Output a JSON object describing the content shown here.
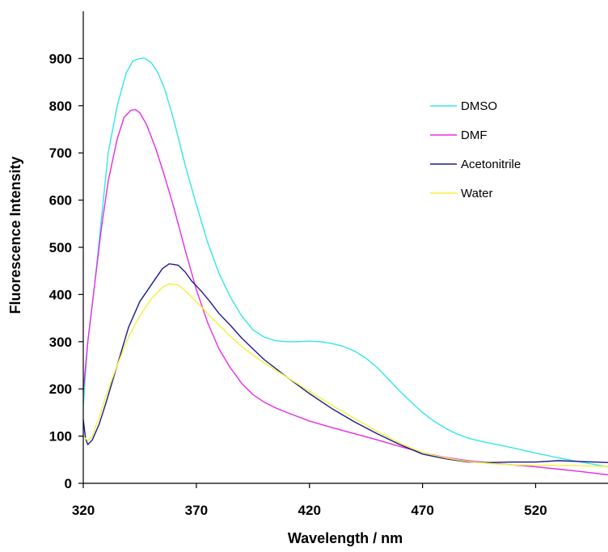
{
  "chart_data": {
    "type": "line",
    "title": "",
    "xlabel": "Wavelength / nm",
    "ylabel": "Fluorescence Intensity",
    "xlim": [
      320,
      552
    ],
    "ylim": [
      0,
      1000
    ],
    "x_ticks": [
      320,
      370,
      420,
      470,
      520
    ],
    "y_ticks": [
      0,
      100,
      200,
      300,
      400,
      500,
      600,
      700,
      800,
      900
    ],
    "grid": false,
    "legend_position": "right",
    "series": [
      {
        "name": "DMSO",
        "color": "#33e6e6",
        "x": [
          320,
          322,
          325,
          328,
          331,
          335,
          339,
          342,
          345,
          347,
          350,
          353,
          356,
          360,
          365,
          370,
          375,
          380,
          385,
          390,
          395,
          400,
          405,
          410,
          415,
          420,
          425,
          430,
          435,
          440,
          445,
          450,
          455,
          460,
          465,
          470,
          475,
          480,
          485,
          490,
          495,
          500,
          510,
          520,
          530,
          540,
          552
        ],
        "y": [
          165,
          300,
          420,
          560,
          700,
          800,
          870,
          895,
          900,
          901,
          892,
          870,
          835,
          770,
          675,
          590,
          510,
          445,
          395,
          355,
          325,
          310,
          302,
          300,
          300,
          301,
          300,
          296,
          290,
          280,
          265,
          245,
          220,
          195,
          172,
          150,
          132,
          117,
          105,
          96,
          90,
          85,
          75,
          64,
          54,
          45,
          35
        ]
      },
      {
        "name": "DMF",
        "color": "#e62be6",
        "x": [
          320,
          322,
          325,
          328,
          331,
          335,
          338,
          341,
          343,
          345,
          348,
          352,
          356,
          360,
          365,
          370,
          375,
          380,
          385,
          390,
          395,
          400,
          405,
          410,
          420,
          430,
          440,
          450,
          460,
          470,
          480,
          490,
          500,
          510,
          520,
          530,
          540,
          552
        ],
        "y": [
          195,
          300,
          420,
          540,
          640,
          730,
          775,
          790,
          792,
          785,
          760,
          710,
          650,
          585,
          495,
          410,
          340,
          285,
          245,
          212,
          188,
          172,
          160,
          150,
          132,
          118,
          105,
          92,
          78,
          65,
          55,
          48,
          43,
          39,
          35,
          30,
          25,
          18
        ]
      },
      {
        "name": "Acetonitrile",
        "color": "#1a1a8c",
        "x": [
          320,
          321,
          322,
          324,
          327,
          330,
          335,
          340,
          345,
          350,
          355,
          358,
          362,
          365,
          368,
          372,
          376,
          380,
          385,
          390,
          395,
          400,
          410,
          420,
          430,
          440,
          450,
          460,
          470,
          480,
          490,
          500,
          510,
          520,
          530,
          540,
          552
        ],
        "y": [
          135,
          95,
          82,
          92,
          125,
          170,
          250,
          330,
          385,
          420,
          455,
          465,
          462,
          448,
          428,
          408,
          385,
          360,
          335,
          308,
          285,
          262,
          225,
          190,
          158,
          130,
          105,
          82,
          62,
          52,
          45,
          44,
          45,
          45,
          48,
          46,
          44
        ]
      },
      {
        "name": "Water",
        "color": "#f2f23a",
        "x": [
          320,
          322,
          324,
          327,
          330,
          335,
          340,
          345,
          350,
          355,
          358,
          362,
          365,
          370,
          375,
          380,
          385,
          390,
          395,
          400,
          410,
          420,
          430,
          440,
          450,
          460,
          470,
          480,
          490,
          500,
          510,
          520,
          530,
          540,
          552
        ],
        "y": [
          100,
          90,
          100,
          140,
          185,
          250,
          310,
          355,
          390,
          415,
          423,
          420,
          408,
          385,
          360,
          335,
          312,
          290,
          272,
          255,
          225,
          195,
          165,
          137,
          110,
          85,
          65,
          54,
          46,
          42,
          39,
          38,
          38,
          37,
          36
        ]
      }
    ]
  }
}
